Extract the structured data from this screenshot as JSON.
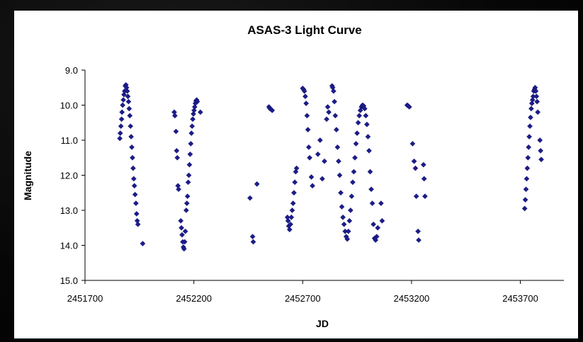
{
  "chart_data": {
    "type": "scatter",
    "title": "ASAS-3 Light Curve",
    "xlabel": "JD",
    "ylabel": "Magnitude",
    "xlim": [
      2451700,
      2453900
    ],
    "ylim": [
      9.0,
      15.0
    ],
    "y_inverted": true,
    "x_ticks": [
      "2451700",
      "2452200",
      "2452700",
      "2453200",
      "2453700"
    ],
    "y_ticks": [
      "9.0",
      "10.0",
      "11.0",
      "12.0",
      "13.0",
      "14.0",
      "15.0"
    ],
    "marker": "diamond",
    "grid": false,
    "legend": "none",
    "colors": {
      "marker": "#1c1c8c",
      "background": "#000000",
      "panel": "#ffffff"
    },
    "points": [
      [
        2451860,
        10.95
      ],
      [
        2451862,
        10.8
      ],
      [
        2451865,
        10.6
      ],
      [
        2451868,
        10.4
      ],
      [
        2451870,
        10.2
      ],
      [
        2451873,
        10.0
      ],
      [
        2451876,
        9.85
      ],
      [
        2451879,
        9.7
      ],
      [
        2451882,
        9.6
      ],
      [
        2451885,
        9.45
      ],
      [
        2451888,
        9.42
      ],
      [
        2451891,
        9.5
      ],
      [
        2451894,
        9.6
      ],
      [
        2451897,
        9.75
      ],
      [
        2451900,
        9.9
      ],
      [
        2451903,
        10.1
      ],
      [
        2451906,
        10.3
      ],
      [
        2451909,
        10.6
      ],
      [
        2451912,
        10.9
      ],
      [
        2451915,
        11.2
      ],
      [
        2451918,
        11.5
      ],
      [
        2451921,
        11.8
      ],
      [
        2451924,
        12.1
      ],
      [
        2451927,
        12.3
      ],
      [
        2451930,
        12.55
      ],
      [
        2451934,
        12.8
      ],
      [
        2451937,
        13.1
      ],
      [
        2451940,
        13.3
      ],
      [
        2451943,
        13.4
      ],
      [
        2451965,
        13.95
      ],
      [
        2452110,
        10.2
      ],
      [
        2452113,
        10.3
      ],
      [
        2452118,
        10.75
      ],
      [
        2452121,
        11.3
      ],
      [
        2452124,
        11.5
      ],
      [
        2452127,
        12.3
      ],
      [
        2452130,
        12.4
      ],
      [
        2452140,
        13.3
      ],
      [
        2452143,
        13.5
      ],
      [
        2452146,
        13.7
      ],
      [
        2452149,
        13.9
      ],
      [
        2452152,
        14.05
      ],
      [
        2452155,
        14.1
      ],
      [
        2452158,
        13.9
      ],
      [
        2452161,
        13.6
      ],
      [
        2452165,
        13.0
      ],
      [
        2452168,
        12.8
      ],
      [
        2452171,
        12.6
      ],
      [
        2452174,
        12.2
      ],
      [
        2452177,
        12.0
      ],
      [
        2452180,
        11.7
      ],
      [
        2452183,
        11.4
      ],
      [
        2452186,
        11.1
      ],
      [
        2452189,
        10.8
      ],
      [
        2452192,
        10.6
      ],
      [
        2452195,
        10.4
      ],
      [
        2452198,
        10.25
      ],
      [
        2452201,
        10.15
      ],
      [
        2452204,
        10.05
      ],
      [
        2452207,
        9.95
      ],
      [
        2452210,
        9.88
      ],
      [
        2452213,
        9.85
      ],
      [
        2452216,
        9.9
      ],
      [
        2452230,
        10.2
      ],
      [
        2452458,
        12.65
      ],
      [
        2452470,
        13.75
      ],
      [
        2452473,
        13.9
      ],
      [
        2452490,
        12.25
      ],
      [
        2452545,
        10.05
      ],
      [
        2452550,
        10.1
      ],
      [
        2452555,
        10.12
      ],
      [
        2452560,
        10.15
      ],
      [
        2452630,
        13.2
      ],
      [
        2452633,
        13.3
      ],
      [
        2452636,
        13.45
      ],
      [
        2452640,
        13.55
      ],
      [
        2452644,
        13.4
      ],
      [
        2452648,
        13.2
      ],
      [
        2452652,
        13.0
      ],
      [
        2452656,
        12.8
      ],
      [
        2452660,
        12.5
      ],
      [
        2452664,
        12.2
      ],
      [
        2452668,
        11.9
      ],
      [
        2452672,
        11.8
      ],
      [
        2452700,
        9.52
      ],
      [
        2452704,
        9.55
      ],
      [
        2452708,
        9.6
      ],
      [
        2452712,
        9.75
      ],
      [
        2452716,
        9.95
      ],
      [
        2452720,
        10.3
      ],
      [
        2452724,
        10.7
      ],
      [
        2452728,
        11.2
      ],
      [
        2452732,
        11.5
      ],
      [
        2452740,
        12.05
      ],
      [
        2452745,
        12.3
      ],
      [
        2452770,
        11.4
      ],
      [
        2452780,
        11.0
      ],
      [
        2452790,
        12.1
      ],
      [
        2452800,
        11.6
      ],
      [
        2452810,
        10.4
      ],
      [
        2452815,
        10.05
      ],
      [
        2452820,
        10.2
      ],
      [
        2452835,
        9.45
      ],
      [
        2452838,
        9.5
      ],
      [
        2452842,
        9.6
      ],
      [
        2452846,
        9.9
      ],
      [
        2452850,
        10.3
      ],
      [
        2452855,
        10.7
      ],
      [
        2452860,
        11.2
      ],
      [
        2452865,
        11.6
      ],
      [
        2452870,
        12.0
      ],
      [
        2452875,
        12.5
      ],
      [
        2452880,
        12.9
      ],
      [
        2452885,
        13.2
      ],
      [
        2452890,
        13.4
      ],
      [
        2452895,
        13.6
      ],
      [
        2452900,
        13.75
      ],
      [
        2452905,
        13.82
      ],
      [
        2452910,
        13.6
      ],
      [
        2452915,
        13.3
      ],
      [
        2452920,
        13.0
      ],
      [
        2452925,
        12.6
      ],
      [
        2452930,
        12.2
      ],
      [
        2452935,
        11.9
      ],
      [
        2452940,
        11.5
      ],
      [
        2452945,
        11.1
      ],
      [
        2452950,
        10.8
      ],
      [
        2452955,
        10.5
      ],
      [
        2452960,
        10.3
      ],
      [
        2452965,
        10.15
      ],
      [
        2452970,
        10.05
      ],
      [
        2452975,
        10.0
      ],
      [
        2452980,
        10.02
      ],
      [
        2452985,
        10.1
      ],
      [
        2452990,
        10.3
      ],
      [
        2452995,
        10.55
      ],
      [
        2453000,
        10.9
      ],
      [
        2453005,
        11.3
      ],
      [
        2453010,
        11.9
      ],
      [
        2453015,
        12.4
      ],
      [
        2453020,
        12.8
      ],
      [
        2453025,
        13.4
      ],
      [
        2453030,
        13.8
      ],
      [
        2453035,
        13.85
      ],
      [
        2453040,
        13.75
      ],
      [
        2453045,
        13.5
      ],
      [
        2453060,
        12.8
      ],
      [
        2453065,
        13.3
      ],
      [
        2453180,
        10.0
      ],
      [
        2453185,
        10.02
      ],
      [
        2453190,
        10.05
      ],
      [
        2453205,
        11.1
      ],
      [
        2453212,
        11.6
      ],
      [
        2453218,
        11.8
      ],
      [
        2453222,
        12.6
      ],
      [
        2453230,
        13.6
      ],
      [
        2453233,
        13.85
      ],
      [
        2453255,
        11.7
      ],
      [
        2453258,
        12.1
      ],
      [
        2453262,
        12.6
      ],
      [
        2453720,
        12.95
      ],
      [
        2453723,
        12.7
      ],
      [
        2453726,
        12.4
      ],
      [
        2453729,
        12.1
      ],
      [
        2453732,
        11.8
      ],
      [
        2453735,
        11.5
      ],
      [
        2453738,
        11.2
      ],
      [
        2453741,
        10.9
      ],
      [
        2453744,
        10.6
      ],
      [
        2453747,
        10.35
      ],
      [
        2453750,
        10.1
      ],
      [
        2453753,
        9.95
      ],
      [
        2453756,
        9.85
      ],
      [
        2453759,
        9.75
      ],
      [
        2453762,
        9.6
      ],
      [
        2453765,
        9.55
      ],
      [
        2453768,
        9.5
      ],
      [
        2453771,
        9.6
      ],
      [
        2453774,
        9.75
      ],
      [
        2453777,
        9.9
      ],
      [
        2453780,
        10.2
      ],
      [
        2453790,
        11.0
      ],
      [
        2453793,
        11.3
      ],
      [
        2453796,
        11.55
      ]
    ]
  }
}
